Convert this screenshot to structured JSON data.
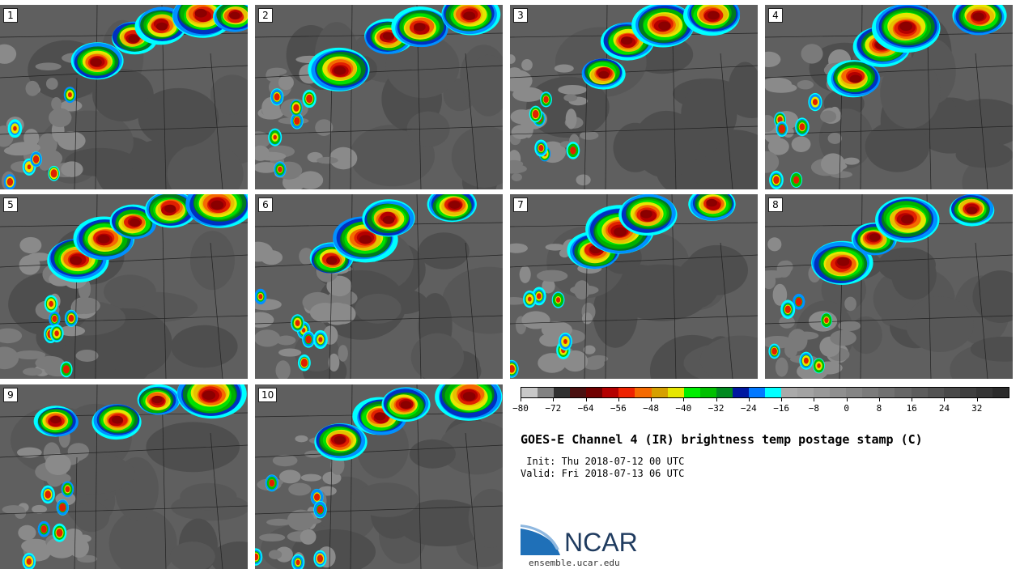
{
  "panels": [
    {
      "label": "1"
    },
    {
      "label": "2"
    },
    {
      "label": "3"
    },
    {
      "label": "4"
    },
    {
      "label": "5"
    },
    {
      "label": "6"
    },
    {
      "label": "7"
    },
    {
      "label": "8"
    },
    {
      "label": "9"
    },
    {
      "label": "10"
    }
  ],
  "colorbar": {
    "colors": [
      "#c8c8c8",
      "#828282",
      "#303030",
      "#4a1010",
      "#700000",
      "#b40000",
      "#ee2200",
      "#f56a00",
      "#d6a000",
      "#e6e600",
      "#00ee00",
      "#00c000",
      "#008a20",
      "#0018a0",
      "#0078ff",
      "#00ffff",
      "#aaaaaa",
      "#a3a3a3",
      "#999999",
      "#8f8f8f",
      "#858585",
      "#7b7b7b",
      "#717171",
      "#676767",
      "#5d5d5d",
      "#535353",
      "#494949",
      "#3f3f3f",
      "#353535",
      "#2b2b2b"
    ],
    "ticks": [
      "−80",
      "−72",
      "−64",
      "−56",
      "−48",
      "−40",
      "−32",
      "−24",
      "−16",
      "−8",
      "0",
      "8",
      "16",
      "24",
      "32"
    ]
  },
  "title": "GOES-E Channel 4 (IR) brightness temp postage stamp (C)",
  "init_line": " Init: Thu 2018-07-12 00 UTC",
  "valid_line": "Valid: Fri 2018-07-13 06 UTC",
  "logo": {
    "text": "NCAR",
    "site": "ensemble.ucar.edu"
  }
}
